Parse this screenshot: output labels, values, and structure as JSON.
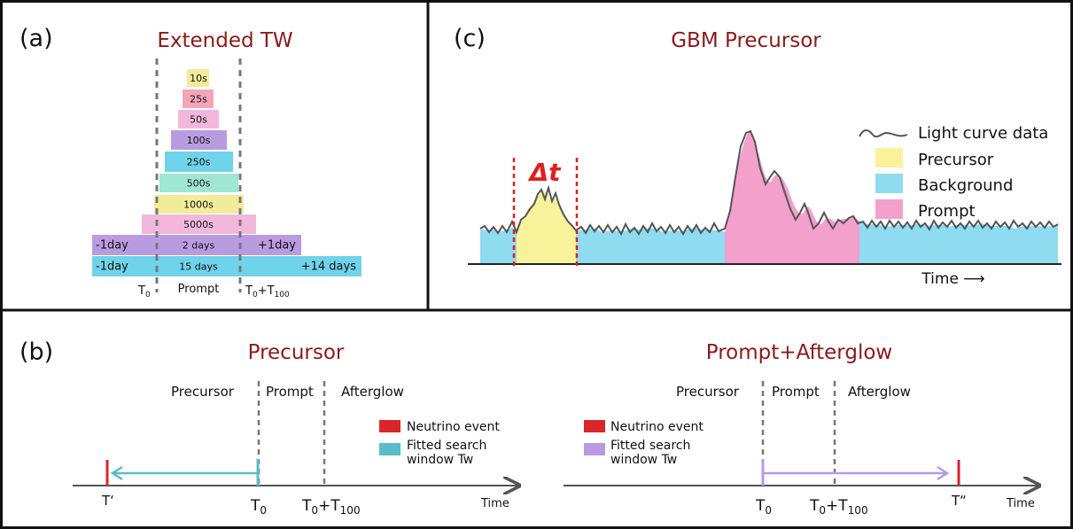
{
  "panel_a": {
    "label": "(a)",
    "title": "Extended TW",
    "bars": [
      {
        "label": "10s",
        "color": "#f1ec9b"
      },
      {
        "label": "25s",
        "color": "#f4a6b9"
      },
      {
        "label": "50s",
        "color": "#f2b8dc"
      },
      {
        "label": "100s",
        "color": "#b99ce0"
      },
      {
        "label": "250s",
        "color": "#6fd3e9"
      },
      {
        "label": "500s",
        "color": "#9fe6d5"
      },
      {
        "label": "1000s",
        "color": "#f1ec9b"
      },
      {
        "label": "5000s",
        "color": "#f2b8dc"
      },
      {
        "label": "2 days",
        "left_label": "-1day",
        "right_label": "+1day",
        "color": "#b99ce0"
      },
      {
        "label": "15 days",
        "left_label": "-1day",
        "right_label": "+14 days",
        "color": "#6fd3e9"
      }
    ],
    "t0_label": "T",
    "t0_sub": "0",
    "prompt_label": "Prompt",
    "t100_label": "T",
    "t100_sub": "0",
    "t100_plus": "+T",
    "t100_sub2": "100"
  },
  "panel_c": {
    "label": "(c)",
    "title": "GBM Precursor",
    "delta_t": "Δt",
    "time_label": "Time ⟶",
    "legend": [
      {
        "label": "Light curve data",
        "type": "line",
        "color": "#555555"
      },
      {
        "label": "Precursor",
        "type": "box",
        "color": "#f8f29a"
      },
      {
        "label": "Background",
        "type": "box",
        "color": "#8fdbef"
      },
      {
        "label": "Prompt",
        "type": "box",
        "color": "#f3a0cd"
      }
    ]
  },
  "panel_b": {
    "label": "(b)",
    "left": {
      "title": "Precursor",
      "phase_precursor": "Precursor",
      "phase_prompt": "Prompt",
      "phase_afterglow": "Afterglow",
      "legend_neutrino": "Neutrino event",
      "legend_window_1": "Fitted search",
      "legend_window_2": "window Tw",
      "neutrino_color": "#d9262a",
      "window_color": "#5bbcc9",
      "t_prime": "T‘",
      "t0": "T",
      "t0_sub": "0",
      "t100": "T",
      "t100_sub": "0",
      "t100_plus": "+T",
      "t100_sub2": "100",
      "time": "Time"
    },
    "right": {
      "title": "Prompt+Afterglow",
      "phase_precursor": "Precursor",
      "phase_prompt": "Prompt",
      "phase_afterglow": "Afterglow",
      "legend_neutrino": "Neutrino event",
      "legend_window_1": "Fitted search",
      "legend_window_2": "window Tw",
      "neutrino_color": "#d9262a",
      "window_color": "#b79ae2",
      "t_dprime": "T“",
      "t0": "T",
      "t0_sub": "0",
      "t100": "T",
      "t100_sub": "0",
      "t100_plus": "+T",
      "t100_sub2": "100",
      "time": "Time"
    }
  }
}
